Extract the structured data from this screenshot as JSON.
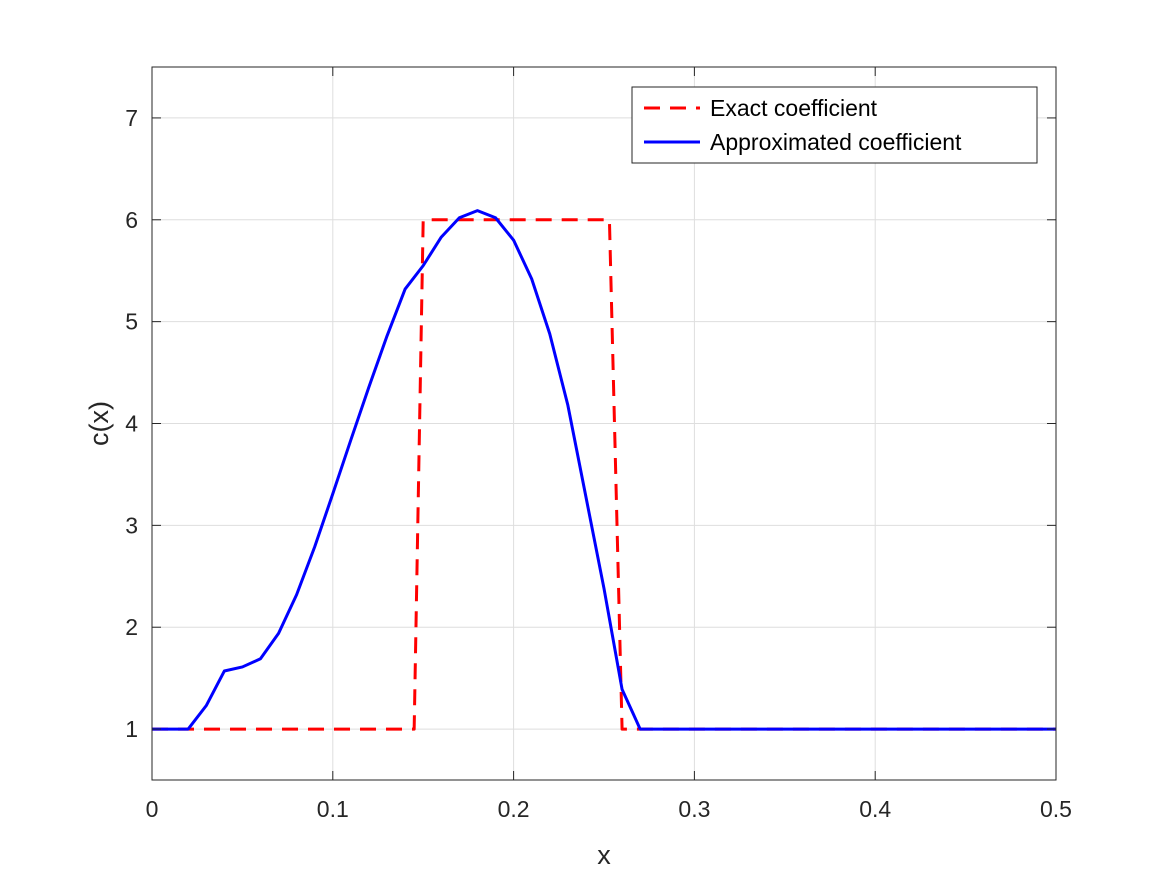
{
  "chart_data": {
    "type": "line",
    "xlabel": "x",
    "ylabel": "c(x)",
    "xlim": [
      0,
      0.5
    ],
    "ylim": [
      0.5,
      7.5
    ],
    "xticks": [
      0,
      0.1,
      0.2,
      0.3,
      0.4,
      0.5
    ],
    "xtick_labels": [
      "0",
      "0.1",
      "0.2",
      "0.3",
      "0.4",
      "0.5"
    ],
    "yticks": [
      1,
      2,
      3,
      4,
      5,
      6,
      7
    ],
    "ytick_labels": [
      "1",
      "2",
      "3",
      "4",
      "5",
      "6",
      "7"
    ],
    "grid": true,
    "box": true,
    "legend_position": "top-right",
    "series": [
      {
        "name": "Exact coefficient",
        "color": "#ff0000",
        "style": "dashed",
        "x": [
          0,
          0.145,
          0.15,
          0.253,
          0.26,
          0.5
        ],
        "y": [
          1,
          1,
          6,
          6,
          1,
          1
        ]
      },
      {
        "name": "Approximated coefficient",
        "color": "#0000ff",
        "style": "solid",
        "x": [
          0,
          0.01,
          0.02,
          0.03,
          0.04,
          0.05,
          0.06,
          0.07,
          0.08,
          0.09,
          0.1,
          0.11,
          0.12,
          0.13,
          0.14,
          0.15,
          0.16,
          0.17,
          0.18,
          0.19,
          0.2,
          0.21,
          0.22,
          0.23,
          0.24,
          0.25,
          0.26,
          0.27,
          0.28,
          0.29,
          0.3,
          0.32,
          0.34,
          0.36,
          0.38,
          0.4,
          0.42,
          0.44,
          0.46,
          0.48,
          0.5
        ],
        "y": [
          1,
          1,
          1,
          1.23,
          1.57,
          1.61,
          1.69,
          1.94,
          2.32,
          2.79,
          3.31,
          3.84,
          4.36,
          4.86,
          5.32,
          5.55,
          5.83,
          6.02,
          6.09,
          6.02,
          5.8,
          5.42,
          4.88,
          4.18,
          3.28,
          2.38,
          1.39,
          1.0,
          1,
          1,
          1,
          1,
          1,
          1,
          1,
          1,
          1,
          1,
          1,
          1,
          1
        ]
      }
    ]
  }
}
